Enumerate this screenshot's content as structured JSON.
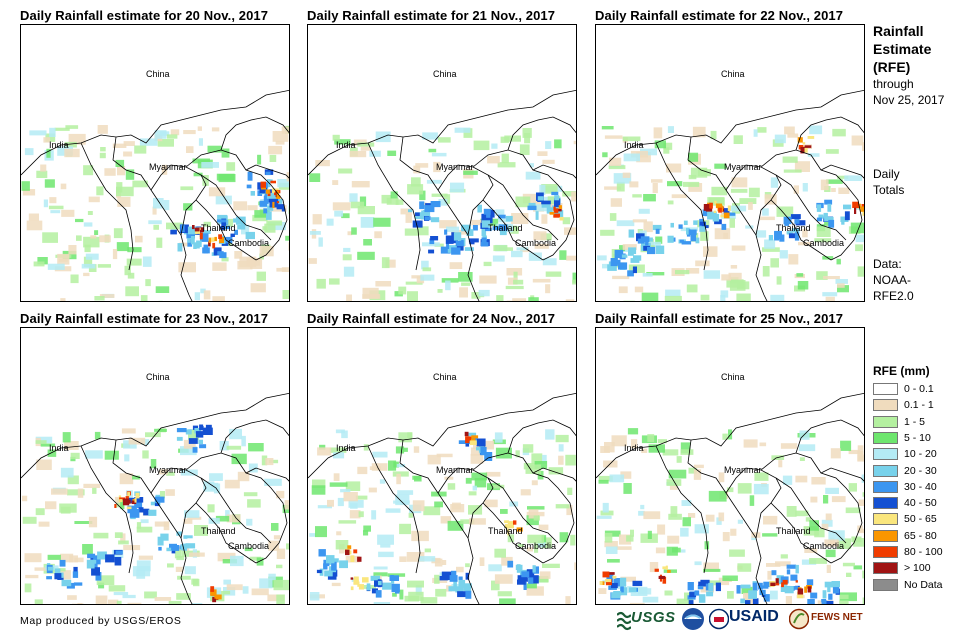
{
  "panels": [
    {
      "title": "Daily Rainfall estimate for 20 Nov., 2017",
      "heavy": [
        [
          196,
          228
        ],
        [
          212,
          236
        ],
        [
          265,
          185
        ],
        [
          278,
          195
        ]
      ],
      "med": [
        [
          180,
          235
        ],
        [
          210,
          240
        ],
        [
          255,
          180
        ],
        [
          230,
          225
        ],
        [
          270,
          200
        ]
      ]
    },
    {
      "title": "Daily Rainfall estimate for 21 Nov., 2017",
      "heavy": [
        [
          552,
          210
        ]
      ],
      "med": [
        [
          420,
          210
        ],
        [
          470,
          235
        ],
        [
          540,
          200
        ],
        [
          490,
          215
        ],
        [
          440,
          240
        ]
      ]
    },
    {
      "title": "Daily Rainfall estimate for 22 Nov., 2017",
      "heavy": [
        [
          708,
          205
        ],
        [
          720,
          210
        ],
        [
          800,
          140
        ],
        [
          858,
          205
        ]
      ],
      "med": [
        [
          680,
          230
        ],
        [
          640,
          235
        ],
        [
          710,
          215
        ],
        [
          780,
          225
        ],
        [
          830,
          210
        ],
        [
          620,
          260
        ]
      ]
    },
    {
      "title": "Daily Rainfall estimate for 23 Nov., 2017",
      "heavy": [
        [
          128,
          495
        ],
        [
          120,
          500
        ],
        [
          210,
          590
        ]
      ],
      "med": [
        [
          190,
          435
        ],
        [
          140,
          500
        ],
        [
          60,
          570
        ],
        [
          100,
          560
        ],
        [
          170,
          540
        ]
      ]
    },
    {
      "title": "Daily Rainfall estimate for 24 Nov., 2017",
      "heavy": [
        [
          350,
          550
        ],
        [
          355,
          580
        ],
        [
          465,
          435
        ],
        [
          510,
          525
        ]
      ],
      "med": [
        [
          330,
          560
        ],
        [
          380,
          580
        ],
        [
          450,
          580
        ],
        [
          520,
          570
        ],
        [
          470,
          440
        ]
      ]
    },
    {
      "title": "Daily Rainfall estimate for 25 Nov., 2017",
      "heavy": [
        [
          605,
          575
        ],
        [
          660,
          570
        ],
        [
          775,
          580
        ],
        [
          800,
          585
        ]
      ],
      "med": [
        [
          620,
          580
        ],
        [
          700,
          590
        ],
        [
          780,
          575
        ],
        [
          750,
          590
        ],
        [
          820,
          590
        ]
      ]
    }
  ],
  "places": {
    "china": "China",
    "india": "India",
    "myanmar": "Myanmar",
    "thailand": "Thailand",
    "cambodia": "Cambodia"
  },
  "side": {
    "title_line1": "Rainfall",
    "title_line2": "Estimate",
    "title_line3": "(RFE)",
    "through": "through",
    "date": "Nov 25, 2017",
    "daily": "Daily",
    "totals": "Totals",
    "data_label": "Data:",
    "source1": "NOAA-",
    "source2": "RFE2.0"
  },
  "legend": {
    "title": "RFE (mm)",
    "items": [
      {
        "label": "0 - 0.1",
        "color": "#ffffff"
      },
      {
        "label": "0.1 - 1",
        "color": "#f0dcbe"
      },
      {
        "label": "1 - 5",
        "color": "#b4f0a0"
      },
      {
        "label": "5 - 10",
        "color": "#6ee66e"
      },
      {
        "label": "10 - 20",
        "color": "#b4ebf5"
      },
      {
        "label": "20 - 30",
        "color": "#78d2eb"
      },
      {
        "label": "30 - 40",
        "color": "#3c96f0"
      },
      {
        "label": "40 - 50",
        "color": "#1450d2"
      },
      {
        "label": "50 - 65",
        "color": "#fae67d"
      },
      {
        "label": "65 - 80",
        "color": "#fa9600"
      },
      {
        "label": "80 - 100",
        "color": "#f03c00"
      },
      {
        "label": "> 100",
        "color": "#a01414"
      },
      {
        "label": "No Data",
        "color": "#8c8c8c"
      }
    ]
  },
  "credit": "Map produced by USGS/EROS",
  "logos": {
    "usgs": "USGS",
    "usaid": "USAID",
    "fews": "FEWS NET"
  }
}
